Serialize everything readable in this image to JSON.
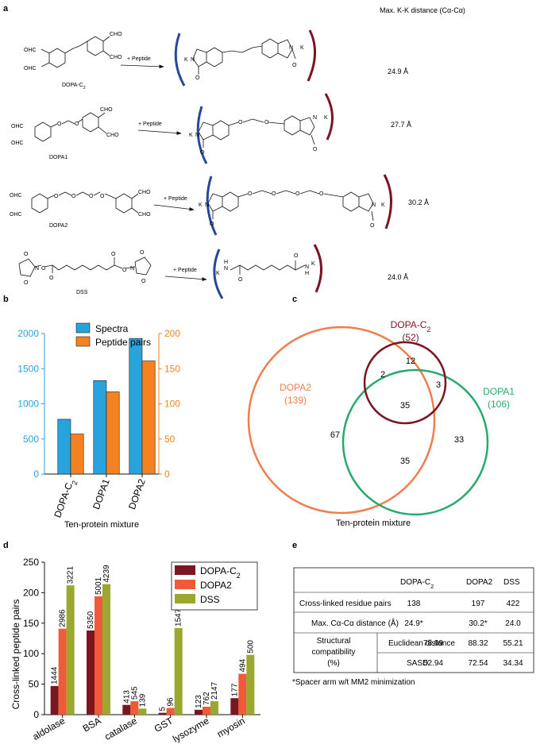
{
  "panels": {
    "a": "a",
    "b": "b",
    "c": "c",
    "d": "d",
    "e": "e"
  },
  "panel_a": {
    "header": "Max. K-K distance (Cα-Cα)",
    "arrow_label": "+ Peptide",
    "lysine": "K",
    "rows": [
      {
        "reagent": "DOPA-C2",
        "distance": "24.9 Å"
      },
      {
        "reagent": "DOPA1",
        "distance": "27.7 Å"
      },
      {
        "reagent": "DOPA2",
        "distance": "30.2 Å"
      },
      {
        "reagent": "DSS",
        "distance": "24.0 Å"
      }
    ],
    "atoms": {
      "cho": "CHO",
      "ohc": "OHC",
      "o": "O",
      "n": "N",
      "h": "H"
    }
  },
  "chart_data": [
    {
      "type": "bar",
      "panel": "b",
      "categories": [
        "DOPA-C2",
        "DOPA1",
        "DOPA2"
      ],
      "series": [
        {
          "name": "Spectra",
          "values": [
            780,
            1330,
            1930
          ],
          "axis": "left",
          "color": "#29a3dc"
        },
        {
          "name": "Peptide pairs",
          "values": [
            57,
            117,
            161
          ],
          "axis": "right",
          "color": "#f58220"
        }
      ],
      "xlabel": "Ten-protein mixture",
      "ylim_left": [
        0,
        2000
      ],
      "ylim_right": [
        0,
        200
      ],
      "yticks_left": [
        0,
        500,
        1000,
        1500,
        2000
      ],
      "yticks_right": [
        0,
        50,
        100,
        150,
        200
      ],
      "legend": "top"
    },
    {
      "type": "bar",
      "panel": "d",
      "categories": [
        "aldolase",
        "BSA",
        "catalase",
        "GST",
        "lysozyme",
        "myosin"
      ],
      "series": [
        {
          "name": "DOPA-C2",
          "values": [
            47,
            138,
            16,
            3,
            8,
            27
          ],
          "labels": [
            "1444",
            "5350",
            "413",
            "5",
            "123",
            "177"
          ],
          "color": "#7b1521"
        },
        {
          "name": "DOPA2",
          "values": [
            141,
            194,
            22,
            11,
            13,
            67
          ],
          "labels": [
            "2986",
            "5001",
            "545",
            "96",
            "762",
            "494"
          ],
          "color": "#ef5a38"
        },
        {
          "name": "DSS",
          "values": [
            212,
            214,
            10,
            142,
            22,
            98
          ],
          "labels": [
            "3221",
            "4239",
            "139",
            "1547",
            "2147",
            "500"
          ],
          "color": "#9aa82e"
        }
      ],
      "ylabel": "Cross-linked peptide pairs",
      "ylim": [
        0,
        250
      ],
      "yticks": [
        0,
        50,
        100,
        150,
        200,
        250
      ],
      "legend": "top-right"
    }
  ],
  "venn": {
    "sets": [
      {
        "name": "DOPA-C2",
        "count": "(52)",
        "color": "#7b1521"
      },
      {
        "name": "DOPA2",
        "count": "(139)",
        "color": "#ef7d4d"
      },
      {
        "name": "DOPA1",
        "count": "(106)",
        "color": "#27a96c"
      }
    ],
    "regions": {
      "c2_only": "12",
      "c2_dopa2": "2",
      "c2_dopa1": "3",
      "all_three": "35",
      "dopa2_only": "67",
      "dopa2_dopa1": "35",
      "dopa1_only": "33"
    },
    "caption": "Ten-protein mixture"
  },
  "table_e": {
    "columns": [
      "DOPA-C2",
      "DOPA2",
      "DSS"
    ],
    "rows": {
      "crosslinked": {
        "label": "Cross-linked residue pairs",
        "values": [
          "138",
          "197",
          "422"
        ]
      },
      "maxdist": {
        "label": "Max. Cα-Cα distance (Å)",
        "values": [
          "24.9*",
          "30.2*",
          "24.0"
        ]
      },
      "struct_label": [
        "Structural",
        "compatibility",
        "(%)"
      ],
      "euclid": {
        "label": "Euclidean distance",
        "values": [
          "78.99",
          "88.32",
          "55.21"
        ]
      },
      "sasd": {
        "label": "SASD",
        "values": [
          "52.94",
          "72.54",
          "34.34"
        ]
      }
    },
    "footnote": "*Spacer arm w/t MM2 minimization"
  }
}
